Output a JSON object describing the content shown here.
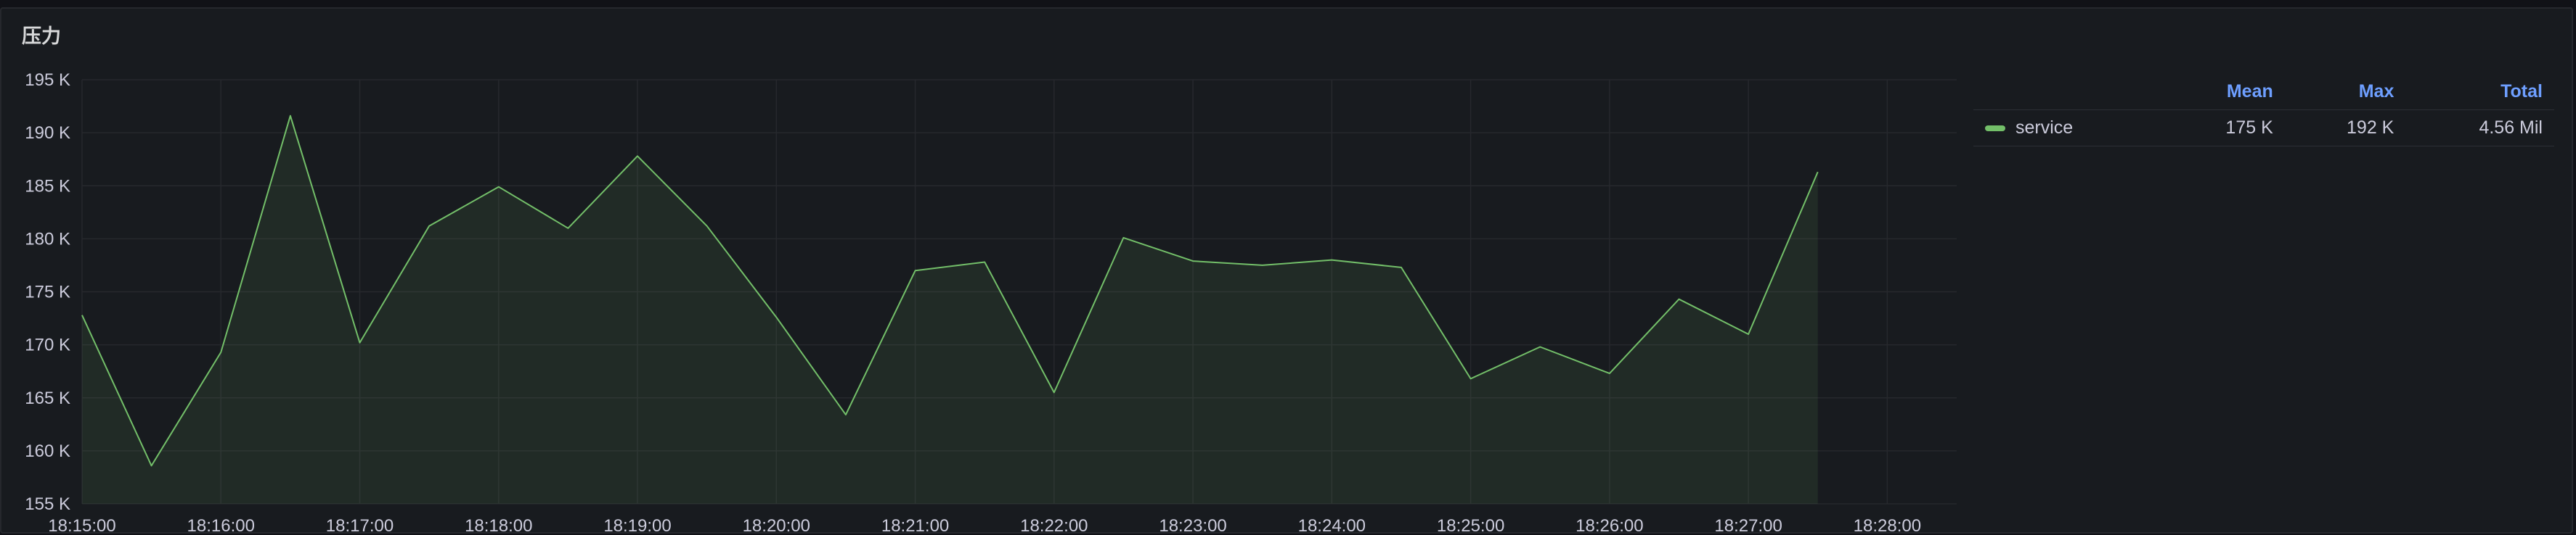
{
  "panel": {
    "title": "压力"
  },
  "colors": {
    "series": "#73bf69",
    "grid": "#26282d",
    "legend_header": "#6e9fff"
  },
  "legend": {
    "columns": [
      "Mean",
      "Max",
      "Total"
    ],
    "rows": [
      {
        "name": "service",
        "values": [
          "175 K",
          "192 K",
          "4.56 Mil"
        ]
      }
    ]
  },
  "chart_data": {
    "type": "area",
    "x_tick_labels": [
      "18:15:00",
      "18:16:00",
      "18:17:00",
      "18:18:00",
      "18:19:00",
      "18:20:00",
      "18:21:00",
      "18:22:00",
      "18:23:00",
      "18:24:00",
      "18:25:00",
      "18:26:00",
      "18:27:00",
      "18:28:00"
    ],
    "y_tick_labels": [
      "155 K",
      "160 K",
      "165 K",
      "170 K",
      "175 K",
      "180 K",
      "185 K",
      "190 K",
      "195 K"
    ],
    "x_minutes_range": [
      0,
      13.5
    ],
    "ylim": [
      155,
      195
    ],
    "y_unit": "K",
    "grid": true,
    "legend_placement": "right",
    "series": [
      {
        "name": "service",
        "x": [
          "18:15:00",
          "18:15:30",
          "18:16:00",
          "18:16:30",
          "18:17:00",
          "18:17:30",
          "18:18:00",
          "18:18:30",
          "18:19:00",
          "18:19:30",
          "18:20:00",
          "18:20:30",
          "18:21:00",
          "18:21:30",
          "18:22:00",
          "18:22:30",
          "18:23:00",
          "18:23:30",
          "18:24:00",
          "18:24:30",
          "18:25:00",
          "18:25:30",
          "18:26:00",
          "18:26:30",
          "18:27:00",
          "18:27:30"
        ],
        "values": [
          172.8,
          158.6,
          169.3,
          191.6,
          170.2,
          181.2,
          184.9,
          181.0,
          187.8,
          181.2,
          172.6,
          163.4,
          177.0,
          177.8,
          165.5,
          180.1,
          177.9,
          177.5,
          178.0,
          177.3,
          166.8,
          169.8,
          167.3,
          174.3,
          171.0,
          186.3
        ]
      }
    ]
  }
}
